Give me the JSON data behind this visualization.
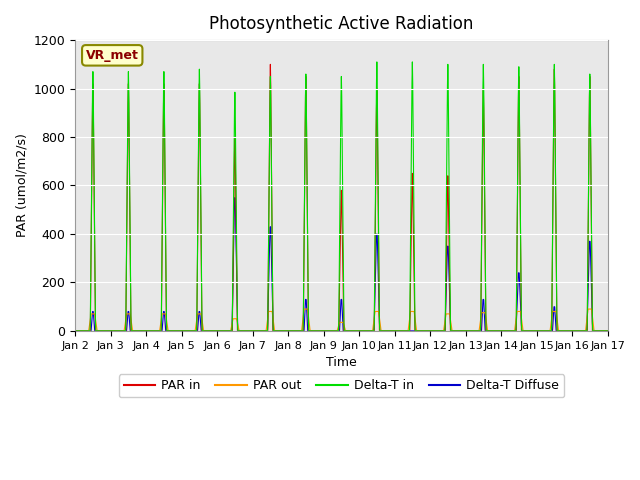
{
  "title": "Photosynthetic Active Radiation",
  "xlabel": "Time",
  "ylabel": "PAR (umol/m2/s)",
  "label_text": "VR_met",
  "legend": [
    "PAR in",
    "PAR out",
    "Delta-T in",
    "Delta-T Diffuse"
  ],
  "colors": {
    "PAR_in": "#dd0000",
    "PAR_out": "#ff9900",
    "Delta_T_in": "#00dd00",
    "Delta_T_Diffuse": "#0000cc"
  },
  "ylim": [
    0,
    1200
  ],
  "xlim_days": [
    2,
    17
  ],
  "x_ticks": [
    2,
    3,
    4,
    5,
    6,
    7,
    8,
    9,
    10,
    11,
    12,
    13,
    14,
    15,
    16,
    17
  ],
  "x_tick_labels": [
    "Jan 2",
    "Jan 3",
    "Jan 4",
    "Jan 5",
    "Jan 6",
    "Jan 7",
    "Jan 8",
    "Jan 9",
    "Jan 10",
    "Jan 11",
    "Jan 12",
    "Jan 13",
    "Jan 14",
    "Jan 15",
    "Jan 16",
    "Jan 17"
  ],
  "background_color": "#e8e8e8",
  "fig_background": "#ffffff",
  "grid_color": "#ffffff",
  "yticks": [
    0,
    200,
    400,
    600,
    800,
    1000,
    1200
  ]
}
